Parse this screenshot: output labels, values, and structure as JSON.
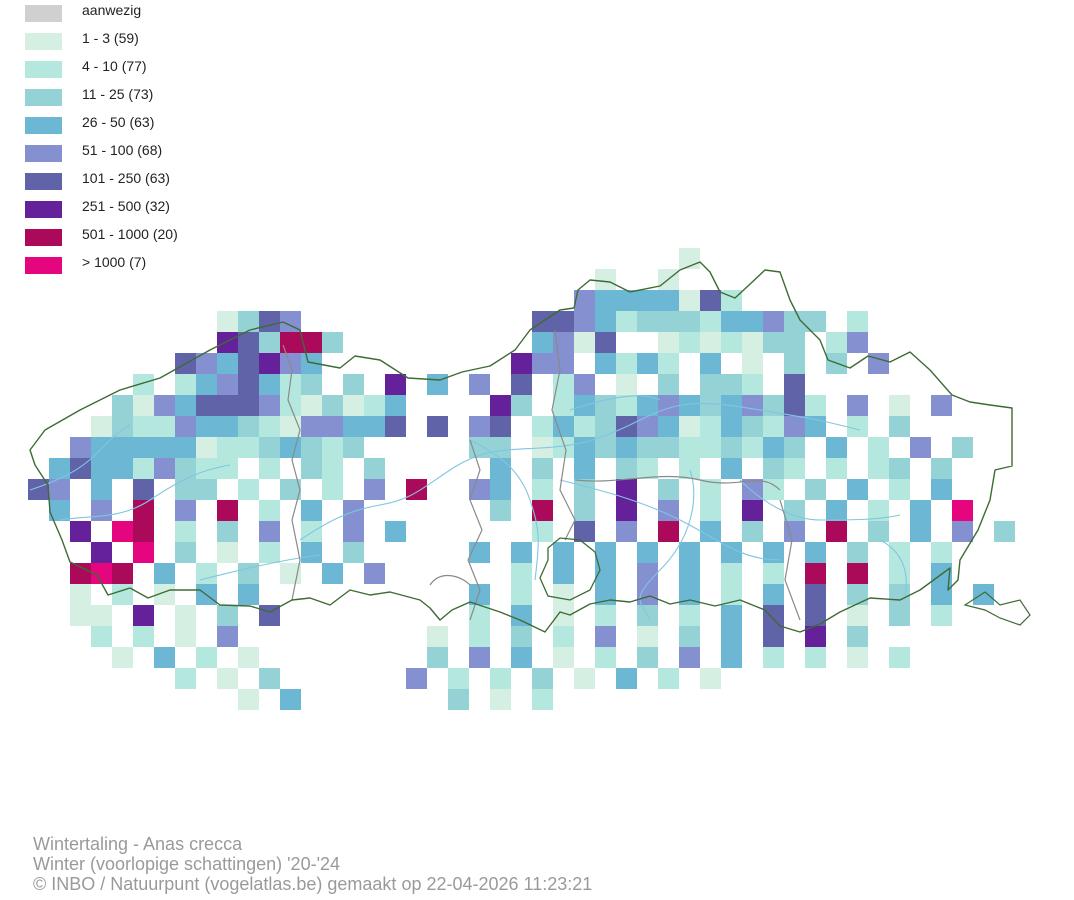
{
  "legend": {
    "items": [
      {
        "label": "aanwezig",
        "color": "#d0d0d0"
      },
      {
        "label": "1 - 3 (59)",
        "color": "#d5f0e2"
      },
      {
        "label": "4 - 10 (77)",
        "color": "#b4e8df"
      },
      {
        "label": "11 - 25 (73)",
        "color": "#94d2d6"
      },
      {
        "label": "26 - 50 (63)",
        "color": "#6cb7d4"
      },
      {
        "label": "51 - 100 (68)",
        "color": "#8490d0"
      },
      {
        "label": "101 - 250 (63)",
        "color": "#6163a8"
      },
      {
        "label": "251 - 500 (32)",
        "color": "#64219a"
      },
      {
        "label": "501 - 1000 (20)",
        "color": "#ab0a5a"
      },
      {
        "label": "> 1000 (7)",
        "color": "#e5057f"
      }
    ]
  },
  "map": {
    "border_color": "#3e6b35",
    "province_border_color": "#8a8a8a",
    "river_color": "#7fc6e0"
  },
  "caption": {
    "species": "Wintertaling - Anas crecca",
    "season": "Winter (voorlopige schattingen) '20-'24",
    "credit": "© INBO / Natuurpunt (vogelatlas.be) gemaakt op 22-04-2026 11:23:21"
  }
}
